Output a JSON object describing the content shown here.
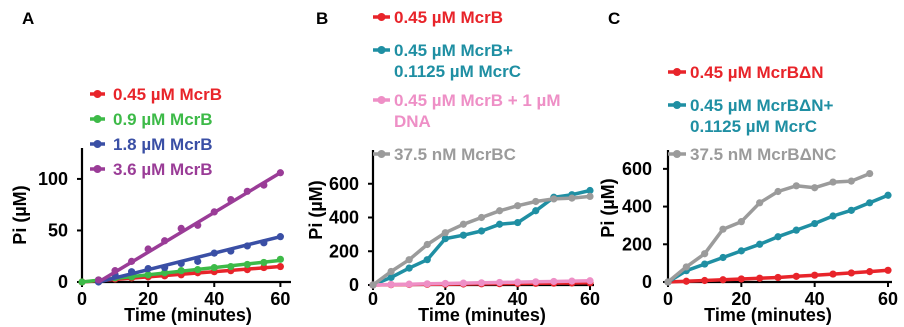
{
  "chart_data": [
    {
      "panel": "A",
      "type": "scatter",
      "xlabel": "Time (minutes)",
      "ylabel": "Pi (µM)",
      "xlim": [
        0,
        62
      ],
      "ylim": [
        0,
        130
      ],
      "xticks": [
        "0",
        "20",
        "40",
        "60"
      ],
      "yticks": [
        "0",
        "50",
        "100"
      ],
      "series": [
        {
          "name": "0.45 µM McrB",
          "color": "#e8242a",
          "fit": [
            [
              0,
              0
            ],
            [
              60,
              15
            ]
          ],
          "x": [
            0,
            5,
            10,
            15,
            20,
            25,
            30,
            35,
            40,
            45,
            50,
            55,
            60
          ],
          "y": [
            0,
            1,
            3,
            4,
            5,
            6,
            7,
            9,
            10,
            11,
            12,
            14,
            15
          ]
        },
        {
          "name": "0.9 µM McrB",
          "color": "#3dba48",
          "fit": [
            [
              0,
              0
            ],
            [
              60,
              21
            ]
          ],
          "x": [
            0,
            5,
            10,
            15,
            20,
            25,
            30,
            35,
            40,
            45,
            50,
            55,
            60
          ],
          "y": [
            0,
            2,
            4,
            5,
            7,
            9,
            11,
            12,
            14,
            15,
            17,
            19,
            22
          ]
        },
        {
          "name": "1.8 µM McrB",
          "color": "#3a4fa5",
          "fit": [
            [
              5,
              0
            ],
            [
              60,
              44
            ]
          ],
          "x": [
            5,
            10,
            15,
            20,
            25,
            30,
            35,
            40,
            45,
            50,
            55,
            60
          ],
          "y": [
            0,
            7,
            10,
            13,
            14,
            18,
            20,
            28,
            30,
            35,
            38,
            44
          ]
        },
        {
          "name": "3.6 µM McrB",
          "color": "#9a3c97",
          "fit": [
            [
              5,
              0
            ],
            [
              60,
              106
            ]
          ],
          "x": [
            5,
            10,
            15,
            20,
            25,
            30,
            35,
            40,
            45,
            50,
            55,
            60
          ],
          "y": [
            2,
            11,
            20,
            32,
            40,
            52,
            55,
            68,
            80,
            88,
            94,
            106
          ]
        }
      ]
    },
    {
      "panel": "B",
      "type": "line",
      "xlabel": "Time (minutes)",
      "ylabel": "Pi (µM)",
      "xlim": [
        0,
        60
      ],
      "ylim": [
        0,
        800
      ],
      "xticks": [
        "0",
        "20",
        "40",
        "60"
      ],
      "yticks": [
        "0",
        "200",
        "400",
        "600"
      ],
      "series": [
        {
          "name": "0.45 µM McrB",
          "color": "#e8242a",
          "x": [
            0,
            5,
            10,
            15,
            20,
            25,
            30,
            35,
            40,
            45,
            50,
            55,
            60
          ],
          "y": [
            0,
            2,
            3,
            4,
            5,
            6,
            7,
            8,
            9,
            10,
            11,
            12,
            13
          ]
        },
        {
          "name": "0.45 µM McrB+\n0.1125 µM McrC",
          "color": "#1f8fa3",
          "x": [
            0,
            5,
            10,
            15,
            20,
            25,
            30,
            35,
            40,
            45,
            50,
            55,
            60
          ],
          "y": [
            0,
            45,
            100,
            150,
            275,
            295,
            320,
            360,
            370,
            440,
            520,
            535,
            560
          ]
        },
        {
          "name": "0.45 µM McrB + 1 µM\nDNA",
          "color": "#ee8fc6",
          "x": [
            0,
            5,
            10,
            15,
            20,
            25,
            30,
            35,
            40,
            45,
            50,
            55,
            60
          ],
          "y": [
            0,
            3,
            5,
            7,
            9,
            11,
            13,
            15,
            17,
            19,
            21,
            23,
            25
          ]
        },
        {
          "name": "37.5 nM McrBC",
          "color": "#9b9b9b",
          "x": [
            0,
            5,
            10,
            15,
            20,
            25,
            30,
            35,
            40,
            45,
            50,
            55,
            60
          ],
          "y": [
            0,
            80,
            150,
            240,
            310,
            360,
            400,
            440,
            470,
            495,
            510,
            515,
            525
          ]
        }
      ]
    },
    {
      "panel": "C",
      "type": "line",
      "xlabel": "Time (minutes)",
      "ylabel": "Pi (µM)",
      "xlim": [
        0,
        60
      ],
      "ylim": [
        0,
        700
      ],
      "xticks": [
        "0",
        "20",
        "40",
        "60"
      ],
      "yticks": [
        "0",
        "200",
        "400",
        "600"
      ],
      "series": [
        {
          "name": "0.45 µM McrBΔN",
          "color": "#e8242a",
          "x": [
            0,
            5,
            10,
            15,
            20,
            25,
            30,
            35,
            40,
            45,
            50,
            55,
            60
          ],
          "y": [
            0,
            4,
            8,
            12,
            16,
            20,
            24,
            30,
            36,
            42,
            48,
            55,
            62
          ]
        },
        {
          "name": "0.45 µM McrBΔN+\n0.1125 µM McrC",
          "color": "#1f8fa3",
          "x": [
            0,
            5,
            10,
            15,
            20,
            25,
            30,
            35,
            40,
            45,
            50,
            55,
            60
          ],
          "y": [
            0,
            60,
            95,
            130,
            165,
            200,
            240,
            275,
            310,
            350,
            380,
            420,
            460
          ]
        },
        {
          "name": "37.5 nM McrBΔNC",
          "color": "#9b9b9b",
          "x": [
            0,
            5,
            10,
            15,
            20,
            25,
            30,
            35,
            40,
            45,
            50,
            55
          ],
          "y": [
            0,
            80,
            150,
            280,
            320,
            420,
            480,
            510,
            500,
            530,
            535,
            575
          ]
        }
      ]
    }
  ]
}
